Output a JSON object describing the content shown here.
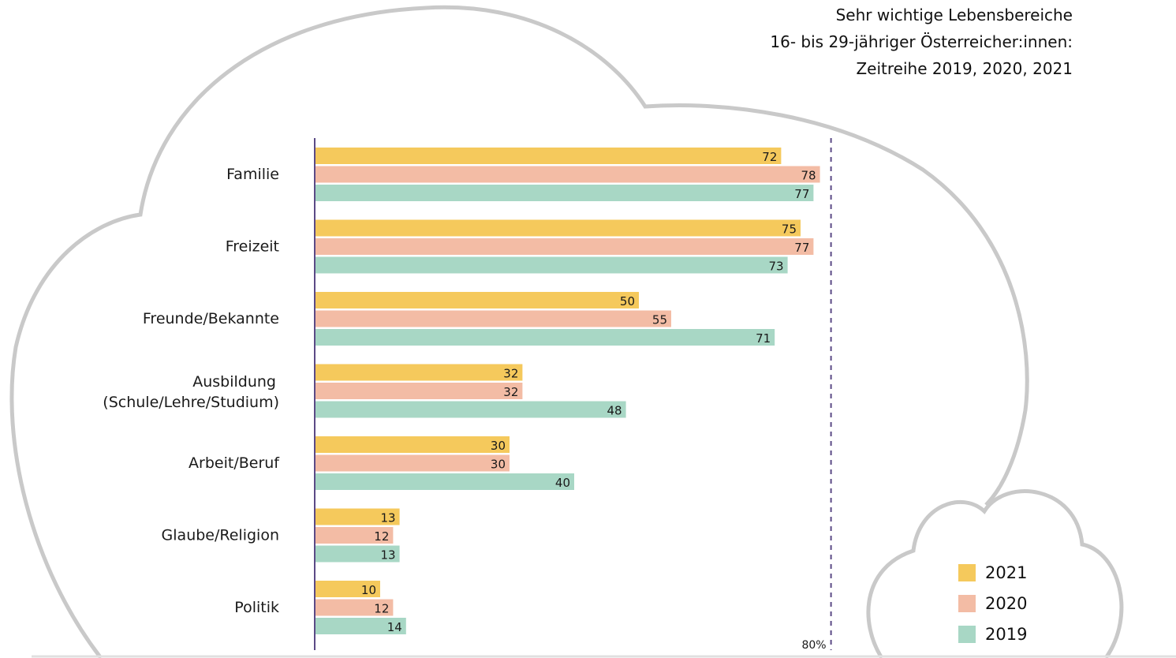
{
  "title": {
    "line1": "Sehr wichtige Lebensbereiche",
    "line2": "16- bis 29-jähriger Österreicher:innen:",
    "line3": "Zeitreihe 2019, 2020, 2021"
  },
  "chart_data": {
    "type": "bar",
    "orientation": "horizontal",
    "categories": [
      [
        "Familie"
      ],
      [
        "Freizeit"
      ],
      [
        "Freunde/Bekannte"
      ],
      [
        "Ausbildung",
        "(Schule/Lehre/Studium)"
      ],
      [
        "Arbeit/Beruf"
      ],
      [
        "Glaube/Religion"
      ],
      [
        "Politik"
      ]
    ],
    "series": [
      {
        "name": "2021",
        "color": "#f5c95c",
        "values": [
          72,
          75,
          50,
          32,
          30,
          13,
          10
        ]
      },
      {
        "name": "2020",
        "color": "#f3bca5",
        "values": [
          78,
          77,
          55,
          32,
          30,
          12,
          12
        ]
      },
      {
        "name": "2019",
        "color": "#a8d7c5",
        "values": [
          77,
          73,
          71,
          48,
          40,
          13,
          14
        ]
      }
    ],
    "xlim": [
      0,
      80
    ],
    "reference_line": {
      "value": 80,
      "label": "80%"
    },
    "legend_position": "bottom-right"
  }
}
